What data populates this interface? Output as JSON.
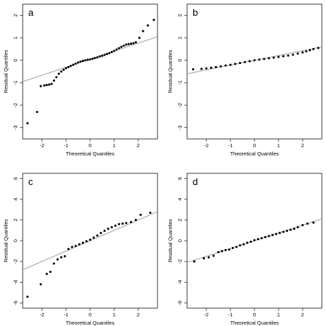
{
  "chart_data": [
    {
      "type": "scatter",
      "panel_label": "a",
      "xlabel": "Theoretical Quantiles",
      "ylabel": "Residual Quantiles",
      "xlim": [
        -2.8,
        2.8
      ],
      "ylim": [
        -3.5,
        2.5
      ],
      "xticks": [
        -2,
        -1,
        0,
        1,
        2
      ],
      "yticks": [
        -3,
        -2,
        -1,
        0,
        1,
        2
      ],
      "reference_line": [
        [
          -2.8,
          -0.95
        ],
        [
          2.8,
          1.05
        ]
      ],
      "points": [
        [
          -2.6,
          -2.8
        ],
        [
          -2.2,
          -2.3
        ],
        [
          -2.05,
          -1.15
        ],
        [
          -1.9,
          -1.12
        ],
        [
          -1.8,
          -1.1
        ],
        [
          -1.7,
          -1.08
        ],
        [
          -1.6,
          -1.05
        ],
        [
          -1.5,
          -0.9
        ],
        [
          -1.4,
          -0.75
        ],
        [
          -1.3,
          -0.6
        ],
        [
          -1.2,
          -0.5
        ],
        [
          -1.1,
          -0.42
        ],
        [
          -1.0,
          -0.35
        ],
        [
          -0.9,
          -0.3
        ],
        [
          -0.8,
          -0.25
        ],
        [
          -0.7,
          -0.2
        ],
        [
          -0.6,
          -0.15
        ],
        [
          -0.5,
          -0.1
        ],
        [
          -0.4,
          -0.06
        ],
        [
          -0.3,
          -0.03
        ],
        [
          -0.2,
          0.0
        ],
        [
          -0.1,
          0.02
        ],
        [
          0.0,
          0.04
        ],
        [
          0.1,
          0.07
        ],
        [
          0.2,
          0.1
        ],
        [
          0.3,
          0.13
        ],
        [
          0.4,
          0.17
        ],
        [
          0.5,
          0.2
        ],
        [
          0.6,
          0.24
        ],
        [
          0.7,
          0.28
        ],
        [
          0.8,
          0.32
        ],
        [
          0.9,
          0.37
        ],
        [
          1.0,
          0.42
        ],
        [
          1.1,
          0.48
        ],
        [
          1.2,
          0.54
        ],
        [
          1.3,
          0.6
        ],
        [
          1.4,
          0.65
        ],
        [
          1.5,
          0.7
        ],
        [
          1.6,
          0.72
        ],
        [
          1.7,
          0.74
        ],
        [
          1.8,
          0.76
        ],
        [
          1.9,
          0.8
        ],
        [
          2.05,
          1.0
        ],
        [
          2.2,
          1.3
        ],
        [
          2.4,
          1.55
        ],
        [
          2.65,
          1.8
        ]
      ]
    },
    {
      "type": "scatter",
      "panel_label": "b",
      "xlabel": "Theoretical Quantiles",
      "ylabel": "Residual Quantiles",
      "xlim": [
        -2.8,
        2.8
      ],
      "ylim": [
        -3.5,
        2.5
      ],
      "xticks": [
        -2,
        -1,
        0,
        1,
        2
      ],
      "yticks": [
        -3,
        -2,
        -1,
        0,
        1,
        2
      ],
      "reference_line": [
        [
          -2.8,
          -0.6
        ],
        [
          2.8,
          0.6
        ]
      ],
      "points": [
        [
          -2.55,
          -0.4
        ],
        [
          -2.2,
          -0.38
        ],
        [
          -2.0,
          -0.36
        ],
        [
          -1.8,
          -0.33
        ],
        [
          -1.6,
          -0.3
        ],
        [
          -1.4,
          -0.27
        ],
        [
          -1.2,
          -0.23
        ],
        [
          -1.0,
          -0.2
        ],
        [
          -0.8,
          -0.16
        ],
        [
          -0.6,
          -0.12
        ],
        [
          -0.4,
          -0.08
        ],
        [
          -0.2,
          -0.04
        ],
        [
          0.0,
          0.0
        ],
        [
          0.2,
          0.03
        ],
        [
          0.4,
          0.06
        ],
        [
          0.6,
          0.09
        ],
        [
          0.8,
          0.12
        ],
        [
          1.0,
          0.15
        ],
        [
          1.2,
          0.18
        ],
        [
          1.4,
          0.21
        ],
        [
          1.6,
          0.25
        ],
        [
          1.8,
          0.3
        ],
        [
          2.0,
          0.35
        ],
        [
          2.15,
          0.4
        ],
        [
          2.3,
          0.45
        ],
        [
          2.45,
          0.5
        ],
        [
          2.65,
          0.55
        ]
      ]
    },
    {
      "type": "scatter",
      "panel_label": "c",
      "xlabel": "Theoretical Quantiles",
      "ylabel": "Residual Quantiles",
      "xlim": [
        -2.8,
        2.8
      ],
      "ylim": [
        -6.5,
        6.5
      ],
      "xticks": [
        -2,
        -1,
        0,
        1,
        2
      ],
      "yticks": [
        -6,
        -4,
        -2,
        0,
        2,
        4,
        6
      ],
      "reference_line": [
        [
          -2.8,
          -2.8
        ],
        [
          2.8,
          2.8
        ]
      ],
      "points": [
        [
          -2.6,
          -5.4
        ],
        [
          -2.05,
          -4.2
        ],
        [
          -1.8,
          -3.2
        ],
        [
          -1.65,
          -3.0
        ],
        [
          -1.5,
          -2.2
        ],
        [
          -1.35,
          -1.8
        ],
        [
          -1.2,
          -1.6
        ],
        [
          -1.05,
          -1.5
        ],
        [
          -0.9,
          -0.8
        ],
        [
          -0.75,
          -0.6
        ],
        [
          -0.6,
          -0.5
        ],
        [
          -0.45,
          -0.35
        ],
        [
          -0.3,
          -0.2
        ],
        [
          -0.15,
          -0.05
        ],
        [
          0.0,
          0.1
        ],
        [
          0.15,
          0.3
        ],
        [
          0.3,
          0.5
        ],
        [
          0.45,
          0.75
        ],
        [
          0.6,
          0.95
        ],
        [
          0.75,
          1.15
        ],
        [
          0.9,
          1.3
        ],
        [
          1.05,
          1.45
        ],
        [
          1.2,
          1.6
        ],
        [
          1.35,
          1.65
        ],
        [
          1.5,
          1.7
        ],
        [
          1.7,
          1.8
        ],
        [
          1.9,
          2.0
        ],
        [
          2.1,
          2.5
        ],
        [
          2.5,
          2.7
        ]
      ]
    },
    {
      "type": "scatter",
      "panel_label": "d",
      "xlabel": "Theoretical Quantiles",
      "ylabel": "Residual Quantiles",
      "xlim": [
        -2.8,
        2.8
      ],
      "ylim": [
        -6.5,
        6.5
      ],
      "xticks": [
        -2,
        -1,
        0,
        1,
        2
      ],
      "yticks": [
        -6,
        -4,
        -2,
        0,
        2,
        4,
        6
      ],
      "reference_line": [
        [
          -2.8,
          -2.1
        ],
        [
          2.8,
          2.1
        ]
      ],
      "points": [
        [
          -2.5,
          -2.0
        ],
        [
          -2.1,
          -1.7
        ],
        [
          -1.9,
          -1.6
        ],
        [
          -1.7,
          -1.45
        ],
        [
          -1.5,
          -1.1
        ],
        [
          -1.35,
          -1.0
        ],
        [
          -1.2,
          -0.9
        ],
        [
          -1.05,
          -0.85
        ],
        [
          -0.9,
          -0.7
        ],
        [
          -0.75,
          -0.6
        ],
        [
          -0.6,
          -0.45
        ],
        [
          -0.45,
          -0.35
        ],
        [
          -0.3,
          -0.2
        ],
        [
          -0.15,
          -0.1
        ],
        [
          0.0,
          0.05
        ],
        [
          0.15,
          0.15
        ],
        [
          0.3,
          0.25
        ],
        [
          0.45,
          0.35
        ],
        [
          0.6,
          0.45
        ],
        [
          0.75,
          0.55
        ],
        [
          0.9,
          0.65
        ],
        [
          1.05,
          0.75
        ],
        [
          1.2,
          0.85
        ],
        [
          1.35,
          0.95
        ],
        [
          1.5,
          1.05
        ],
        [
          1.65,
          1.15
        ],
        [
          1.8,
          1.3
        ],
        [
          2.0,
          1.5
        ],
        [
          2.2,
          1.65
        ],
        [
          2.45,
          1.75
        ]
      ]
    }
  ]
}
